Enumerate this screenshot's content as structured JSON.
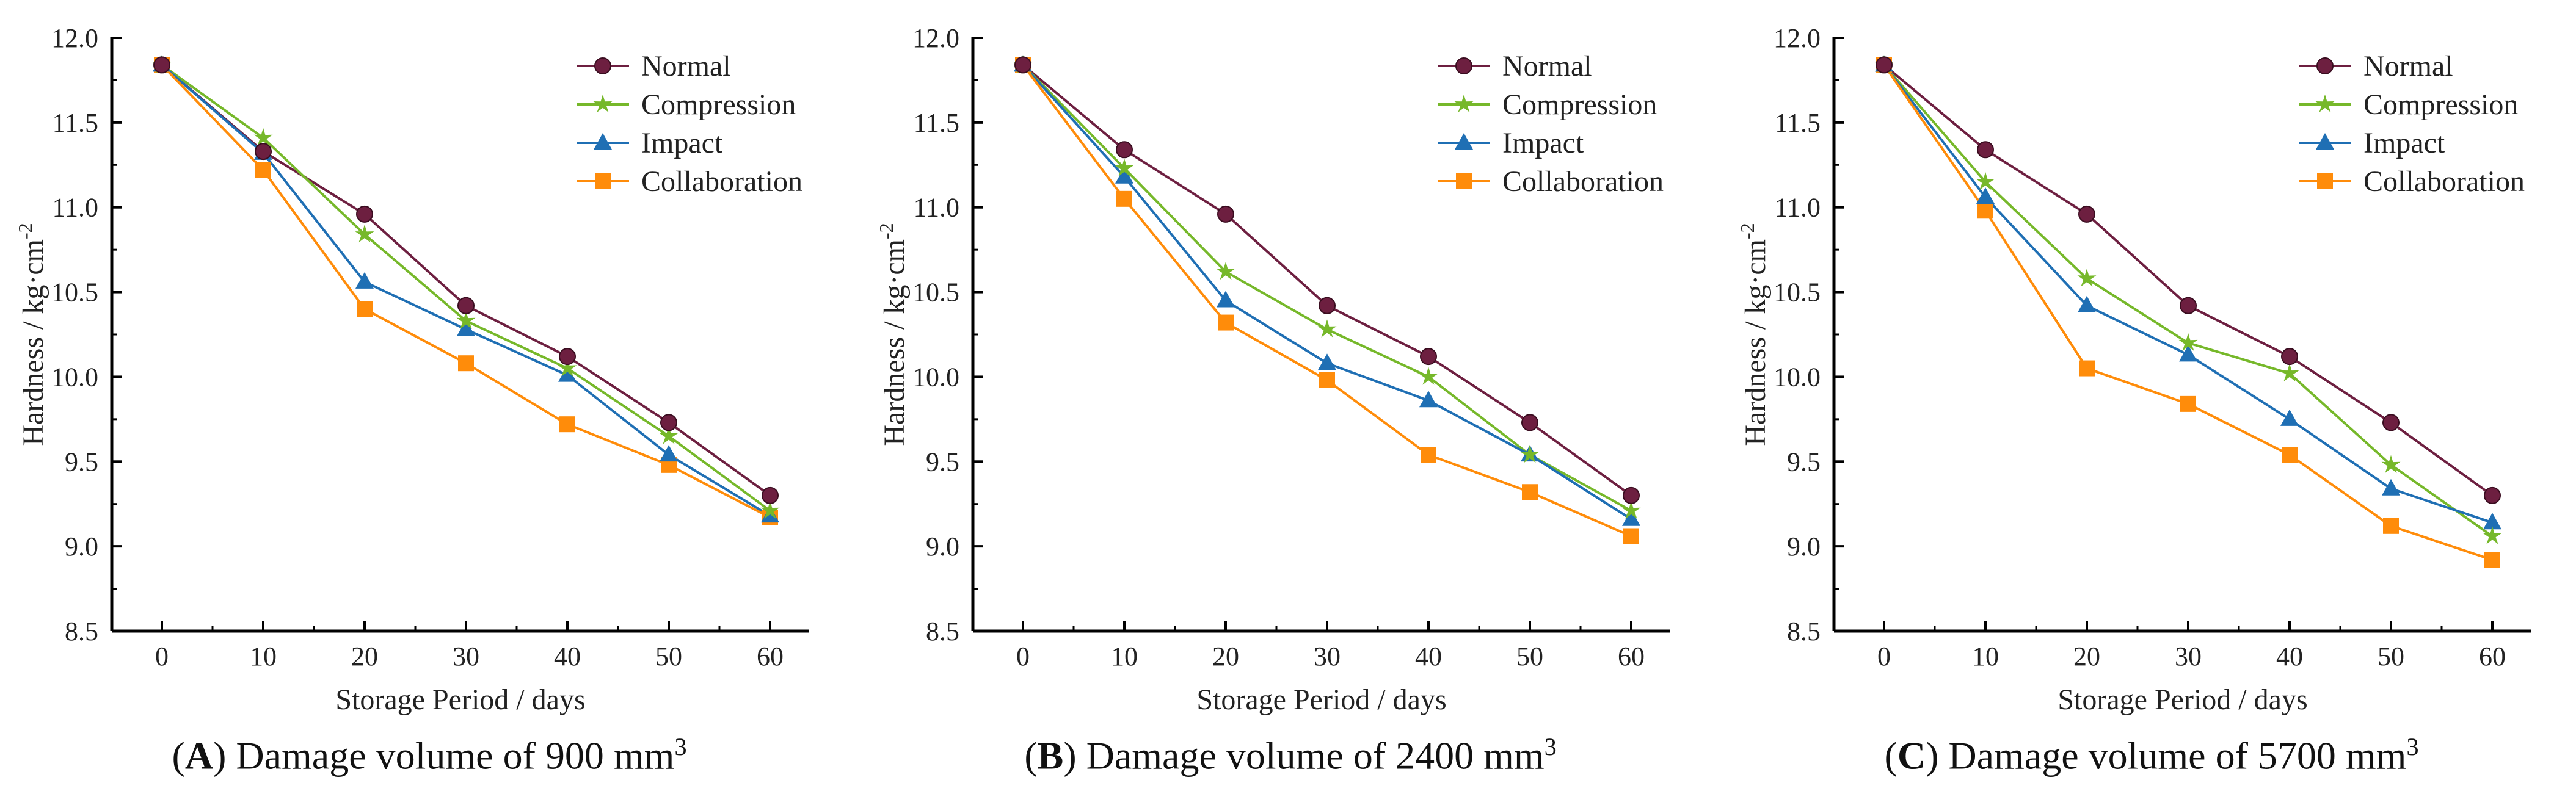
{
  "chart_data": [
    {
      "type": "line",
      "panel_letter": "A",
      "caption_text": "Damage volume of 900 mm",
      "caption_sup": "3",
      "xlabel": "Storage Period / days",
      "ylabel": "Hardness / kg·cm",
      "ylabel_sup": "-2",
      "xlim": [
        -5,
        66
      ],
      "ylim": [
        8.5,
        12.0
      ],
      "x": [
        0,
        10,
        20,
        30,
        40,
        50,
        60
      ],
      "xticks": [
        "0",
        "10",
        "20",
        "30",
        "40",
        "50",
        "60"
      ],
      "yticks": [
        "8.5",
        "9.0",
        "9.5",
        "10.0",
        "10.5",
        "11.0",
        "11.5",
        "12.0"
      ],
      "legend_position": "top-right",
      "series": [
        {
          "name": "Normal",
          "marker": "circle",
          "color": "#6d1f40",
          "values": [
            11.84,
            11.33,
            10.96,
            10.42,
            10.12,
            9.73,
            9.3
          ]
        },
        {
          "name": "Compression",
          "marker": "star",
          "color": "#76b82a",
          "values": [
            11.84,
            11.41,
            10.84,
            10.33,
            10.05,
            9.65,
            9.21
          ]
        },
        {
          "name": "Impact",
          "marker": "triangle",
          "color": "#1f6fb4",
          "values": [
            11.84,
            11.32,
            10.56,
            10.28,
            10.01,
            9.54,
            9.18
          ]
        },
        {
          "name": "Collaboration",
          "marker": "square",
          "color": "#ff8c0a",
          "values": [
            11.84,
            11.22,
            10.4,
            10.08,
            9.72,
            9.48,
            9.17
          ]
        }
      ]
    },
    {
      "type": "line",
      "panel_letter": "B",
      "caption_text": "Damage volume of 2400 mm",
      "caption_sup": "3",
      "xlabel": "Storage Period / days",
      "ylabel": "Hardness / kg·cm",
      "ylabel_sup": "-2",
      "xlim": [
        -5,
        66
      ],
      "ylim": [
        8.5,
        12.0
      ],
      "x": [
        0,
        10,
        20,
        30,
        40,
        50,
        60
      ],
      "xticks": [
        "0",
        "10",
        "20",
        "30",
        "40",
        "50",
        "60"
      ],
      "yticks": [
        "8.5",
        "9.0",
        "9.5",
        "10.0",
        "10.5",
        "11.0",
        "11.5",
        "12.0"
      ],
      "legend_position": "top-right",
      "series": [
        {
          "name": "Normal",
          "marker": "circle",
          "color": "#6d1f40",
          "values": [
            11.84,
            11.34,
            10.96,
            10.42,
            10.12,
            9.73,
            9.3
          ]
        },
        {
          "name": "Compression",
          "marker": "star",
          "color": "#76b82a",
          "values": [
            11.84,
            11.23,
            10.62,
            10.28,
            10.0,
            9.54,
            9.21
          ]
        },
        {
          "name": "Impact",
          "marker": "triangle",
          "color": "#1f6fb4",
          "values": [
            11.84,
            11.18,
            10.45,
            10.08,
            9.86,
            9.54,
            9.16
          ]
        },
        {
          "name": "Collaboration",
          "marker": "square",
          "color": "#ff8c0a",
          "values": [
            11.84,
            11.05,
            10.32,
            9.98,
            9.54,
            9.32,
            9.06
          ]
        }
      ]
    },
    {
      "type": "line",
      "panel_letter": "C",
      "caption_text": "Damage volume of 5700 mm",
      "caption_sup": "3",
      "xlabel": "Storage Period / days",
      "ylabel": "Hardness / kg·cm",
      "ylabel_sup": "-2",
      "xlim": [
        -5,
        66
      ],
      "ylim": [
        8.5,
        12.0
      ],
      "x": [
        0,
        10,
        20,
        30,
        40,
        50,
        60
      ],
      "xticks": [
        "0",
        "10",
        "20",
        "30",
        "40",
        "50",
        "60"
      ],
      "yticks": [
        "8.5",
        "9.0",
        "9.5",
        "10.0",
        "10.5",
        "11.0",
        "11.5",
        "12.0"
      ],
      "legend_position": "top-right",
      "series": [
        {
          "name": "Normal",
          "marker": "circle",
          "color": "#6d1f40",
          "values": [
            11.84,
            11.34,
            10.96,
            10.42,
            10.12,
            9.73,
            9.3
          ]
        },
        {
          "name": "Compression",
          "marker": "star",
          "color": "#76b82a",
          "values": [
            11.84,
            11.15,
            10.58,
            10.2,
            10.02,
            9.48,
            9.06
          ]
        },
        {
          "name": "Impact",
          "marker": "triangle",
          "color": "#1f6fb4",
          "values": [
            11.84,
            11.06,
            10.42,
            10.13,
            9.75,
            9.34,
            9.14
          ]
        },
        {
          "name": "Collaboration",
          "marker": "square",
          "color": "#ff8c0a",
          "values": [
            11.84,
            10.98,
            10.05,
            9.84,
            9.54,
            9.12,
            8.92
          ]
        }
      ]
    }
  ]
}
